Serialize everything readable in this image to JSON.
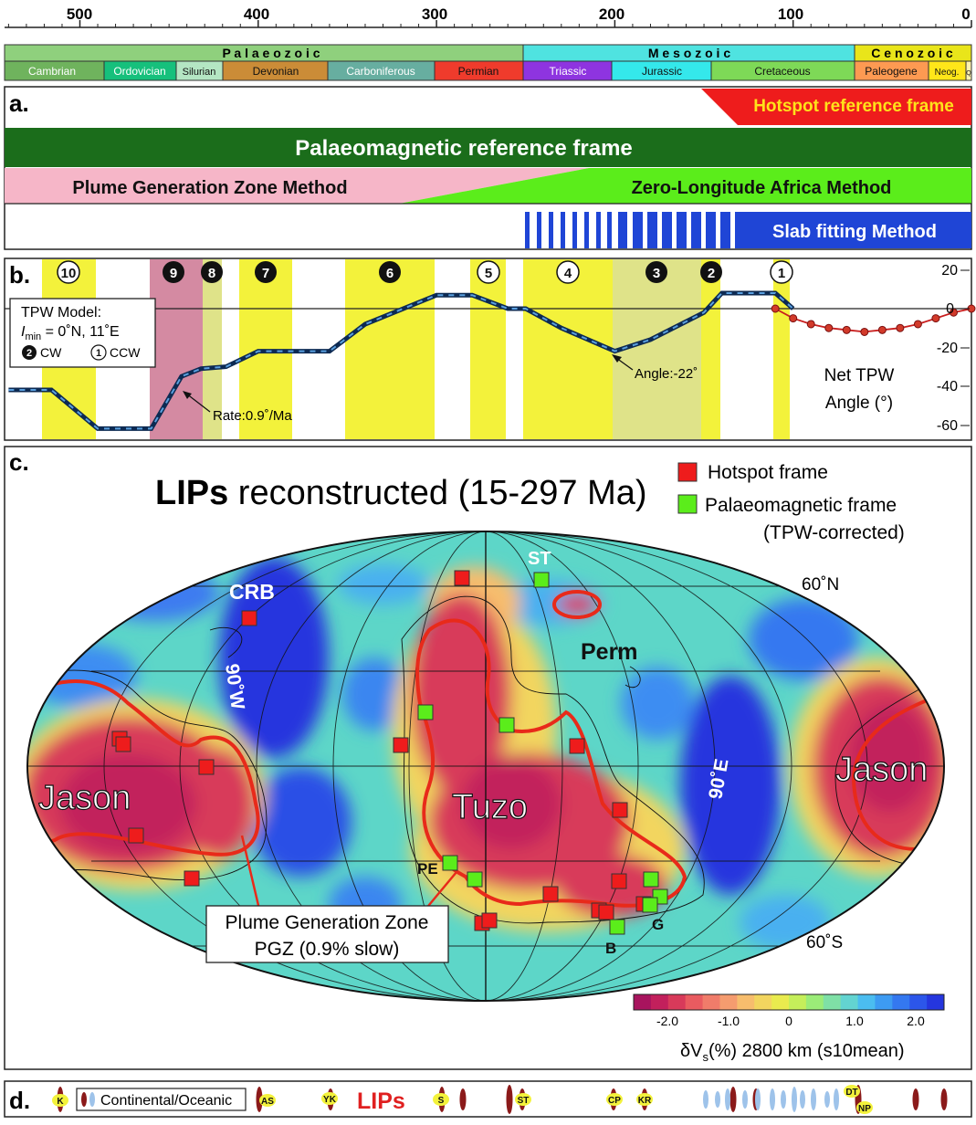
{
  "colors": {
    "hotspot": "#ee1c1c",
    "palaeomag_frame": "#1b6d1b",
    "pgz_method": "#f6b6c8",
    "zero_longitude": "#5bed1b",
    "slab": "#1f45d6",
    "tpw_band": "#f3f23b",
    "deep_red": "#c81e34",
    "deep_blue": "#1f3bd6"
  },
  "timescale": {
    "ticks": [
      "500",
      "400",
      "300",
      "200",
      "100",
      "0"
    ],
    "eras": [
      {
        "name": "P a l a e o z o i c",
        "color": "#8fd07d"
      },
      {
        "name": "M e s o z o i c",
        "color": "#4fe3e0"
      },
      {
        "name": "C e n o z o i c",
        "color": "#e9e51a"
      }
    ],
    "periods": [
      {
        "name": "Cambrian",
        "color": "#6fb35d"
      },
      {
        "name": "Ordovician",
        "color": "#16c07c"
      },
      {
        "name": "Silurian",
        "color": "#b4e6c3"
      },
      {
        "name": "Devonian",
        "color": "#cb8c37"
      },
      {
        "name": "Carboniferous",
        "color": "#67aea0"
      },
      {
        "name": "Permian",
        "color": "#ef3b2c"
      },
      {
        "name": "Triassic",
        "color": "#8e34e0"
      },
      {
        "name": "Jurassic",
        "color": "#34e8eb"
      },
      {
        "name": "Cretaceous",
        "color": "#7ed957"
      },
      {
        "name": "Paleogene",
        "color": "#fd9a52"
      },
      {
        "name": "Neog.",
        "color": "#ffe619"
      },
      {
        "name": "Q",
        "color": "#fff2ae"
      }
    ]
  },
  "panel_a": {
    "label": "a.",
    "hotspot": "Hotspot reference frame",
    "palaeomag": "Palaeomagnetic reference frame",
    "pgz": "Plume Generation Zone Method",
    "zero_long": "Zero-Longitude Africa Method",
    "slab": "Slab fitting Method"
  },
  "panel_b": {
    "label": "b.",
    "stages": [
      {
        "num": "10",
        "style": "CCW"
      },
      {
        "num": "9",
        "style": "CW"
      },
      {
        "num": "8",
        "style": "CW"
      },
      {
        "num": "7",
        "style": "CW"
      },
      {
        "num": "6",
        "style": "CW"
      },
      {
        "num": "5",
        "style": "CCW"
      },
      {
        "num": "4",
        "style": "CCW"
      },
      {
        "num": "3",
        "style": "CW"
      },
      {
        "num": "2",
        "style": "CW"
      },
      {
        "num": "1",
        "style": "CCW"
      }
    ],
    "model_title": "TPW Model:",
    "model_i": "I",
    "model_sub": "min",
    "model_value": " = 0˚N, 11˚E",
    "cw_num": "2",
    "cw_label": "CW",
    "ccw_num": "1",
    "ccw_label": "CCW",
    "rate": "Rate:0.9˚/Ma",
    "angle": "Angle:-22˚",
    "axis_title_1": "Net TPW",
    "axis_title_2": "Angle (°)",
    "y_ticks": [
      "20",
      "0",
      "-20",
      "-40",
      "-60"
    ]
  },
  "chart_data": {
    "type": "line",
    "title": "",
    "xlabel": "",
    "ylabel": "Net TPW Angle (°)",
    "x_unit": "Ma",
    "xlim": [
      540,
      0
    ],
    "ylim": [
      -67,
      23
    ],
    "series": [
      {
        "name": "",
        "color": "#1c4e9a",
        "x": [
          540,
          526,
          516,
          490,
          460,
          443,
          432,
          418,
          400,
          382,
          360,
          340,
          300,
          280,
          260,
          250,
          230,
          200,
          180,
          150,
          140,
          130,
          110,
          100
        ],
        "y": [
          -42,
          -42,
          -42,
          -62,
          -62,
          -35,
          -31,
          -30,
          -22,
          -22,
          -22,
          -8,
          7,
          7,
          0,
          0,
          -10,
          -22,
          -16,
          -2,
          8,
          8,
          8,
          0
        ]
      },
      {
        "name": "",
        "color": "#c81e1e",
        "x": [
          110,
          100,
          90,
          80,
          70,
          60,
          50,
          40,
          30,
          20,
          10,
          0
        ],
        "y": [
          0,
          -5,
          -8,
          -10,
          -11,
          -12,
          -11,
          -10,
          -8,
          -5,
          -2,
          0
        ]
      }
    ]
  },
  "panel_c": {
    "label": "c.",
    "title_bold": "LIPs",
    "title_rest": " reconstructed (15-297 Ma)",
    "legend_hotspot": "Hotspot frame",
    "legend_palaeo_1": "Palaeomagnetic frame",
    "legend_palaeo_2": "(TPW-corrected)",
    "lat_north": "60˚N",
    "lat_south": "60˚S",
    "jason_left": "Jason",
    "jason_right": "Jason",
    "tuzo": "Tuzo",
    "perm": "Perm",
    "crb": "CRB",
    "st": "ST",
    "pe": "PE",
    "b": "B",
    "g": "G",
    "w90": "90˚W",
    "e90": "90˚E",
    "pgz_line1": "Plume Generation Zone",
    "pgz_line2": "PGZ (0.9% slow)",
    "colorbar_ticks": [
      "-2.0",
      "-1.0",
      "0",
      "1.0",
      "2.0"
    ],
    "colorbar_title_a": "δV",
    "colorbar_title_sub": "s",
    "colorbar_title_b": "(%) 2800 km (s10mean)",
    "colorbar_colors": [
      "#a8145e",
      "#c2205c",
      "#d83a5a",
      "#e95b60",
      "#f07c6a",
      "#f59c6f",
      "#f7bd6d",
      "#f2d55f",
      "#e9eb4e",
      "#c5ef5a",
      "#9bec78",
      "#7fe0a6",
      "#63d4d1",
      "#4bbdf0",
      "#3d9bf2",
      "#3478f0",
      "#2c56ea",
      "#2536de"
    ]
  },
  "panel_d": {
    "label": "d.",
    "legend_text": "Continental/Oceanic",
    "lips": "LIPs",
    "lip_labels": [
      "K",
      "AS",
      "YK",
      "S",
      "ST",
      "CP",
      "KR",
      "DT",
      "NP"
    ]
  }
}
